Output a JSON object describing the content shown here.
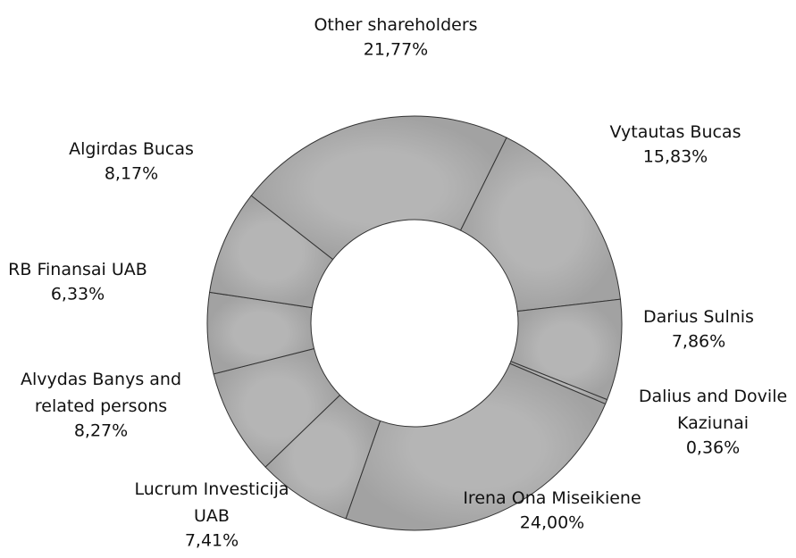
{
  "chart_data": {
    "type": "donut",
    "categories": [
      "Other shareholders",
      "Vytautas Bucas",
      "Darius Sulnis",
      "Dalius and Dovile\nKaziunai",
      "Irena Ona Miseikiene",
      "Lucrum Investicija\nUAB",
      "Alvydas Banys and\nrelated persons",
      "RB Finansai UAB",
      "Algirdas Bucas"
    ],
    "values": [
      21.77,
      15.83,
      7.86,
      0.36,
      24.0,
      7.41,
      8.27,
      6.33,
      8.17
    ],
    "value_labels": [
      "21,77%",
      "15,83%",
      "7,86%",
      "0,36%",
      "24,00%",
      "7,41%",
      "8,27%",
      "6,33%",
      "8,17%"
    ],
    "color": "#ababab"
  }
}
